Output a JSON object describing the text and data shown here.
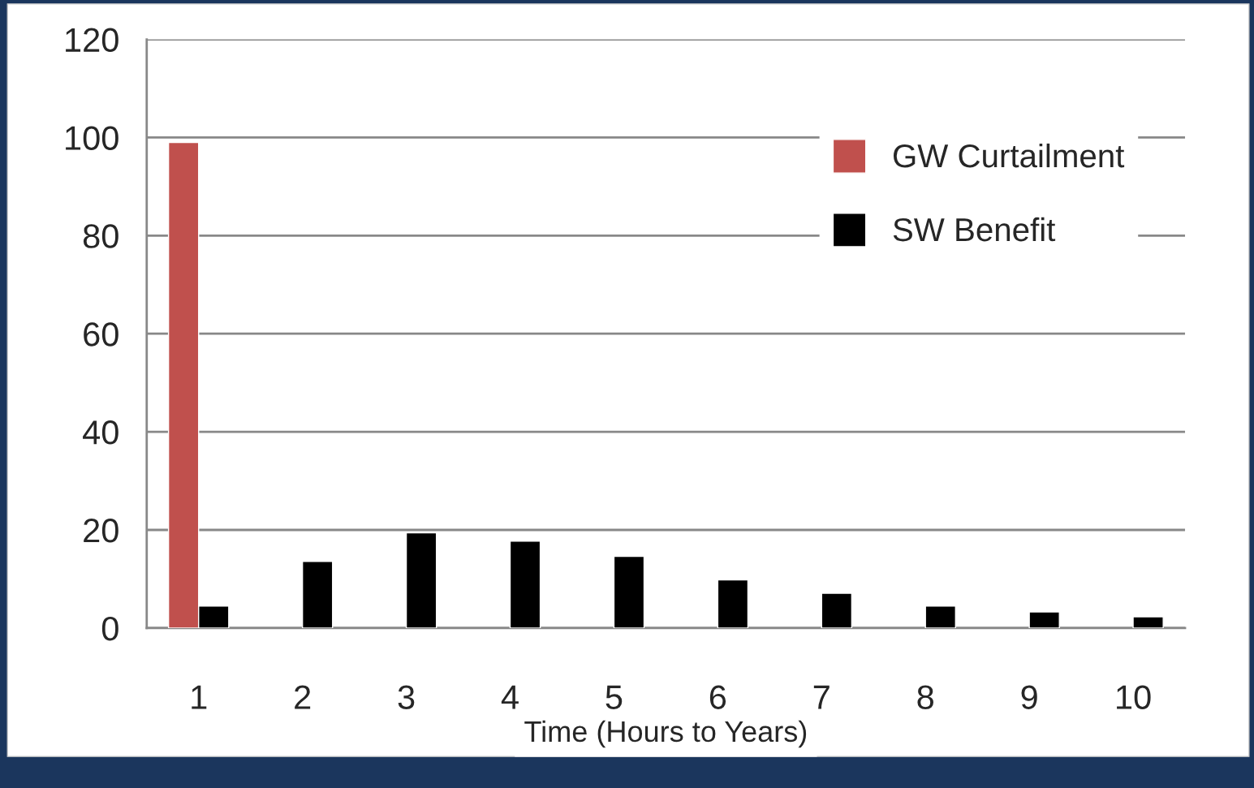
{
  "chart_data": {
    "type": "bar",
    "xlabel": "Time (Hours to Years)",
    "categories": [
      "1",
      "2",
      "3",
      "4",
      "5",
      "6",
      "7",
      "8",
      "9",
      "10"
    ],
    "series": [
      {
        "name": "GW Curtailment",
        "color": "#c0504d",
        "values": [
          99,
          null,
          null,
          null,
          null,
          null,
          null,
          null,
          null,
          null
        ]
      },
      {
        "name": "SW Benefit",
        "color": "#000000",
        "values": [
          4.5,
          13.6,
          19.4,
          17.7,
          14.6,
          9.8,
          7.1,
          4.5,
          3.3,
          2.3
        ]
      }
    ],
    "ylim": [
      0,
      120
    ],
    "yticks": [
      0,
      20,
      40,
      60,
      80,
      100,
      120
    ],
    "grid": "y",
    "legend": "top right"
  }
}
